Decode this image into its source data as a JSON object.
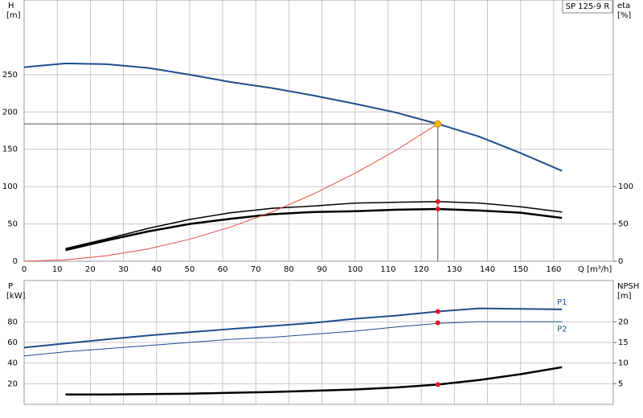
{
  "chart_data": [
    {
      "type": "line",
      "title": "SP 125-9 R",
      "ylabel": "H",
      "yunit": "[m]",
      "y2label": "eta",
      "y2unit": "[%]",
      "xlabel": "Q [m³/h]",
      "x": [
        0,
        12.5,
        25,
        37.5,
        50,
        62.5,
        75,
        87.5,
        100,
        112.5,
        125,
        137.5,
        150,
        162.5
      ],
      "xlim": [
        0,
        178
      ],
      "xticks": [
        0,
        10,
        20,
        30,
        40,
        50,
        60,
        70,
        80,
        90,
        100,
        110,
        120,
        130,
        140,
        150,
        160
      ],
      "ylim": [
        0,
        350
      ],
      "yticks": [
        0,
        50,
        100,
        150,
        200,
        250
      ],
      "y2lim": [
        0,
        350
      ],
      "y2ticks": [
        0,
        50,
        100
      ],
      "grid": true,
      "series": [
        {
          "color": "#1f4e8c",
          "width": 2,
          "values": [
            260,
            265,
            264,
            259,
            250,
            240,
            232,
            222,
            211,
            199,
            184,
            167,
            145,
            121
          ]
        },
        {
          "color": "#000000",
          "width": 1.5,
          "axis": "y2",
          "values": [
            null,
            17,
            30,
            44,
            56,
            65,
            71,
            74,
            78,
            79,
            80,
            78,
            73,
            66
          ]
        },
        {
          "color": "#000000",
          "width": 2.5,
          "axis": "y2",
          "values": [
            null,
            15,
            28,
            40,
            50,
            57,
            63,
            66,
            67,
            69,
            70,
            68,
            65,
            58
          ]
        },
        {
          "color": "#e84b3c",
          "width": 1,
          "values": [
            0,
            1.8,
            7.4,
            16.6,
            29.4,
            46,
            66.2,
            90.2,
            117.8,
            149,
            184,
            null,
            null,
            null
          ]
        }
      ],
      "markers": [
        {
          "x": 125,
          "y": 184,
          "color": "#f5b800",
          "guides": true
        },
        {
          "x": 125,
          "y": 80,
          "axis": "y2",
          "color": "#e8141a"
        },
        {
          "x": 125,
          "y": 70,
          "axis": "y2",
          "color": "#e8141a"
        }
      ]
    },
    {
      "type": "line",
      "ylabel": "P",
      "yunit": "[kW]",
      "y2label": "NPSH",
      "y2unit": "[m]",
      "x": [
        0,
        12.5,
        25,
        37.5,
        50,
        62.5,
        75,
        87.5,
        100,
        112.5,
        125,
        137.5,
        150,
        162.5
      ],
      "xlim": [
        0,
        178
      ],
      "ylim": [
        0,
        120
      ],
      "yticks": [
        20,
        40,
        60,
        80
      ],
      "y2lim": [
        0,
        30
      ],
      "y2ticks": [
        5,
        10,
        15,
        20
      ],
      "grid": true,
      "series": [
        {
          "name": "P1",
          "color": "#1f4e8c",
          "width": 2,
          "values": [
            55,
            59,
            63,
            66.7,
            70,
            73,
            76,
            79,
            83,
            86,
            90,
            93,
            92.5,
            92
          ]
        },
        {
          "name": "P2",
          "color": "#1f4e8c",
          "width": 1,
          "values": [
            47,
            51,
            54,
            57,
            60,
            63,
            65,
            68,
            71,
            75,
            78.5,
            80,
            80,
            80
          ]
        },
        {
          "color": "#000000",
          "width": 2.5,
          "axis": "y2",
          "values": [
            null,
            2.4,
            2.4,
            2.5,
            2.6,
            2.8,
            3.0,
            3.3,
            3.6,
            4.1,
            4.8,
            5.9,
            7.3,
            9.0
          ]
        }
      ],
      "markers": [
        {
          "x": 125,
          "y": 90,
          "color": "#e8141a"
        },
        {
          "x": 125,
          "y": 79,
          "color": "#e8141a"
        },
        {
          "x": 125,
          "y": 4.8,
          "axis": "y2",
          "color": "#e8141a"
        }
      ]
    }
  ]
}
